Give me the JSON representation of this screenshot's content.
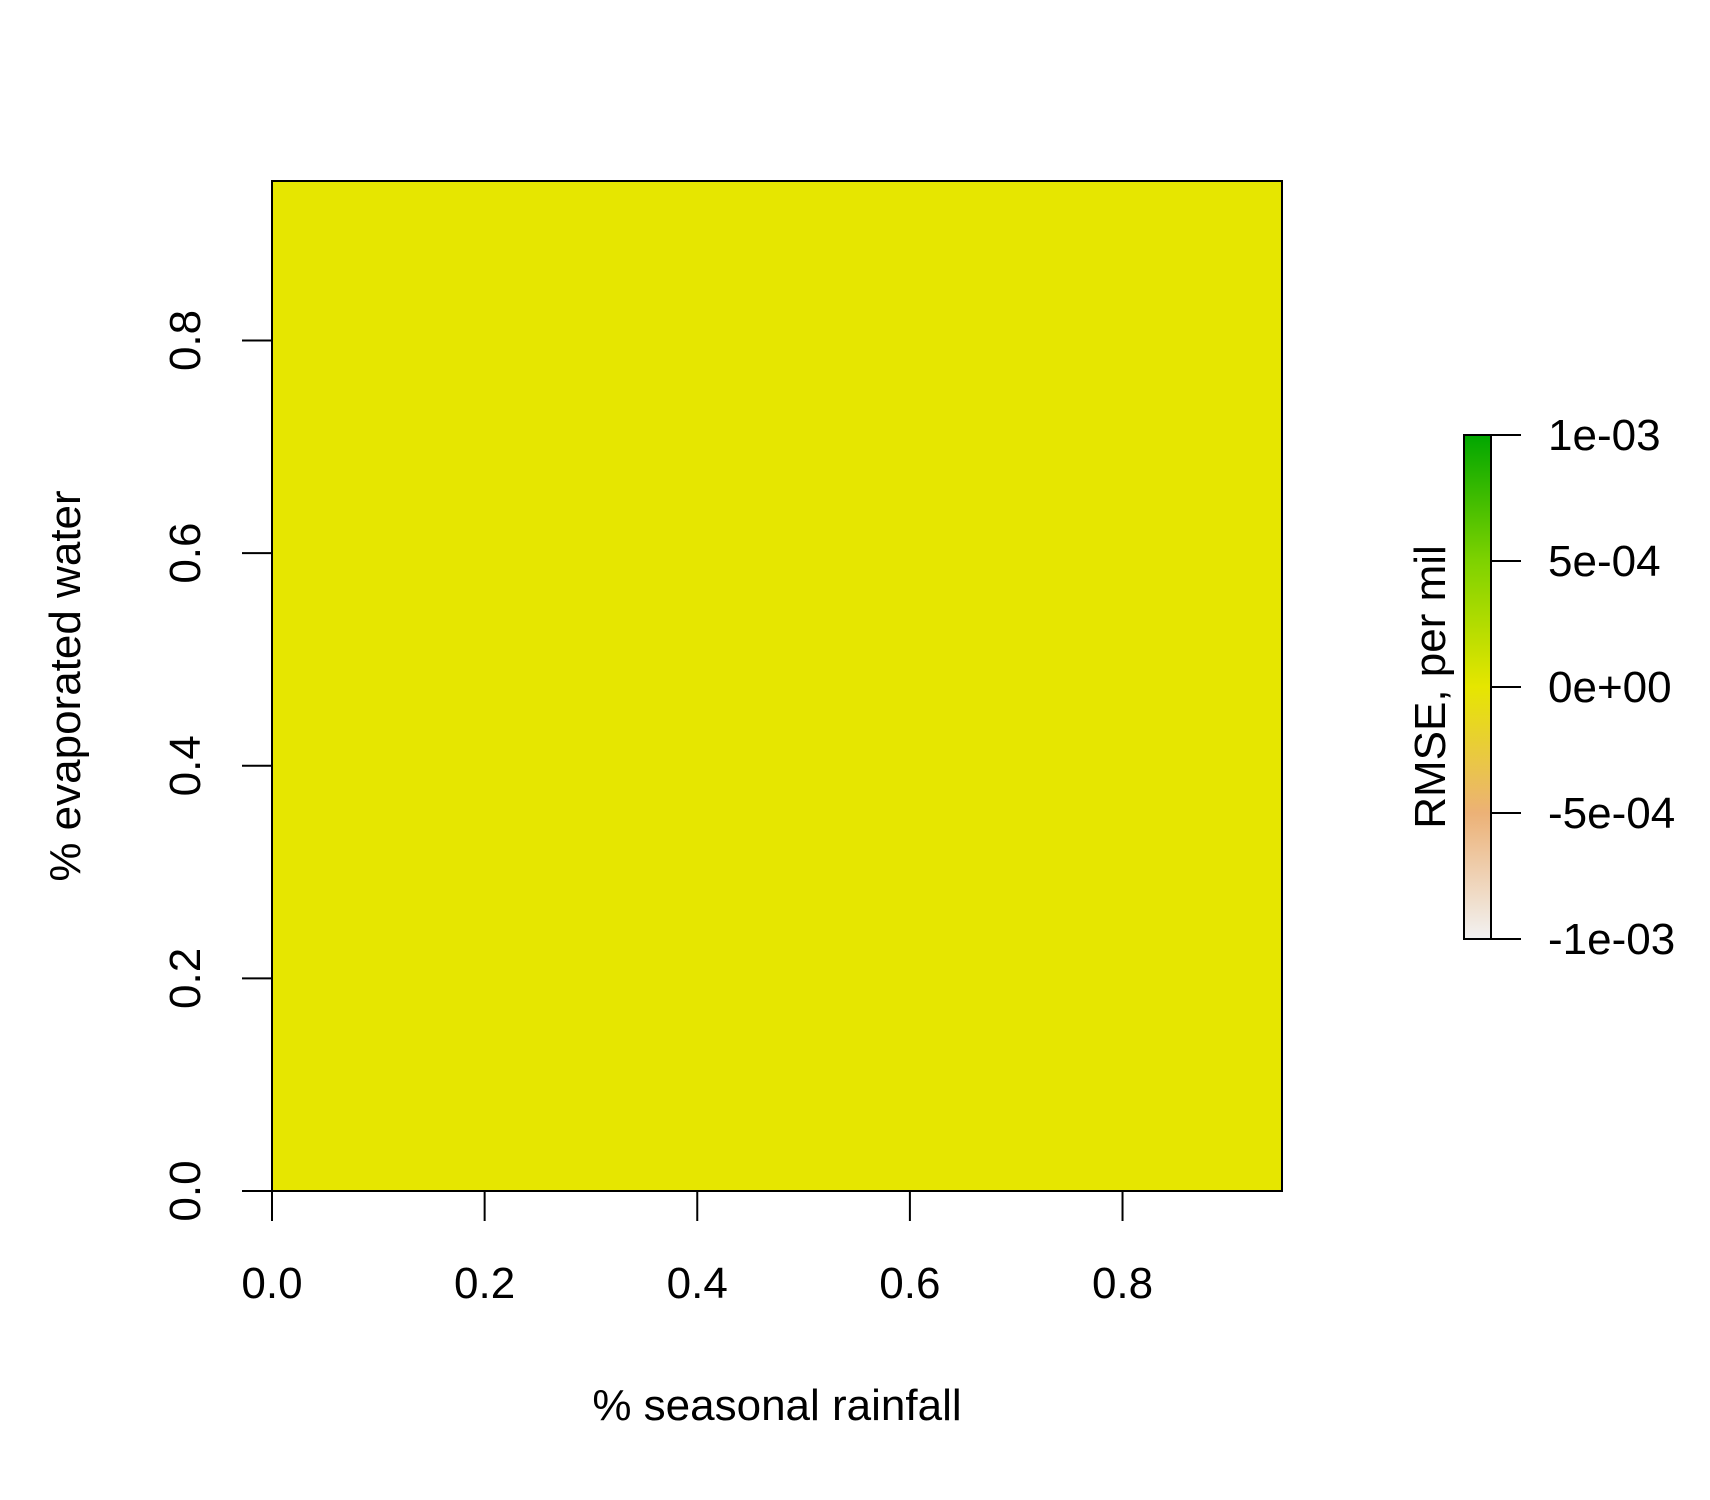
{
  "chart_data": {
    "type": "heatmap",
    "title": "",
    "xlabel": "% seasonal rainfall",
    "ylabel": "% evaporated water",
    "xlim": [
      0,
      0.95
    ],
    "ylim": [
      0,
      0.95
    ],
    "x_ticks": [
      0.0,
      0.2,
      0.4,
      0.6,
      0.8
    ],
    "x_tick_labels": [
      "0.0",
      "0.2",
      "0.4",
      "0.6",
      "0.8"
    ],
    "y_ticks": [
      0.0,
      0.2,
      0.4,
      0.6,
      0.8
    ],
    "y_tick_labels": [
      "0.0",
      "0.2",
      "0.4",
      "0.6",
      "0.8"
    ],
    "grid": false,
    "cells": [
      {
        "x0": 0,
        "x1": 0.95,
        "y0": 0,
        "y1": 0.95,
        "value": 0
      }
    ],
    "colorbar": {
      "label": "RMSE, per mil",
      "range": [
        -0.001,
        0.001
      ],
      "ticks": [
        0.001,
        0.0005,
        0,
        -0.0005,
        -0.001
      ],
      "tick_labels": [
        "1e-03",
        "5e-04",
        "0e+00",
        "-5e-04",
        "-1e-03"
      ],
      "color_stops": [
        {
          "value": -0.001,
          "color": "#f2f2f2"
        },
        {
          "value": -0.0005,
          "color": "#ecb176"
        },
        {
          "value": 0,
          "color": "#e6e600"
        },
        {
          "value": 0.0005,
          "color": "#7ed200"
        },
        {
          "value": 0.001,
          "color": "#00a600"
        }
      ],
      "placement": "right"
    }
  }
}
